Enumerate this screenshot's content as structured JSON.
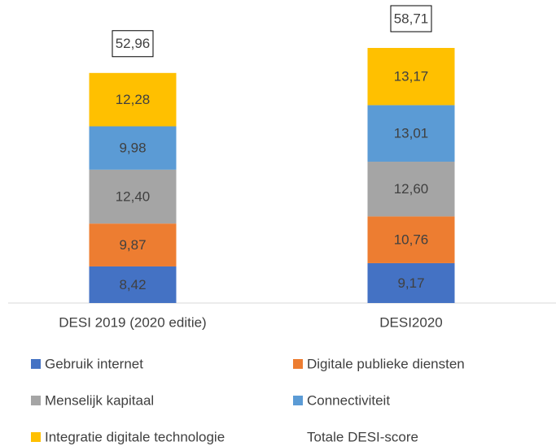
{
  "chart_data": {
    "type": "bar",
    "stacked": true,
    "categories": [
      "DESI 2019  (2020 editie)",
      "DESI2020"
    ],
    "series": [
      {
        "name": "Gebruik internet",
        "color": "#4472c4",
        "values": [
          8.42,
          9.17
        ],
        "value_labels": [
          "8,42",
          "9,17"
        ]
      },
      {
        "name": "Digitale publieke diensten",
        "color": "#ed7d31",
        "values": [
          9.87,
          10.76
        ],
        "value_labels": [
          "9,87",
          "10,76"
        ]
      },
      {
        "name": "Menselijk kapitaal",
        "color": "#a5a5a5",
        "values": [
          12.4,
          12.6
        ],
        "value_labels": [
          "12,40",
          "12,60"
        ]
      },
      {
        "name": "Connectiviteit",
        "color": "#5b9bd5",
        "values": [
          9.98,
          13.01
        ],
        "value_labels": [
          "9,98",
          "13,01"
        ]
      },
      {
        "name": "Integratie digitale technologie",
        "color": "#ffc000",
        "values": [
          12.28,
          13.17
        ],
        "value_labels": [
          "12,28",
          "13,17"
        ]
      },
      {
        "name": "Totale DESI-score",
        "values": [
          52.96,
          58.71
        ],
        "value_labels": [
          "52,96",
          "58,71"
        ]
      }
    ]
  }
}
